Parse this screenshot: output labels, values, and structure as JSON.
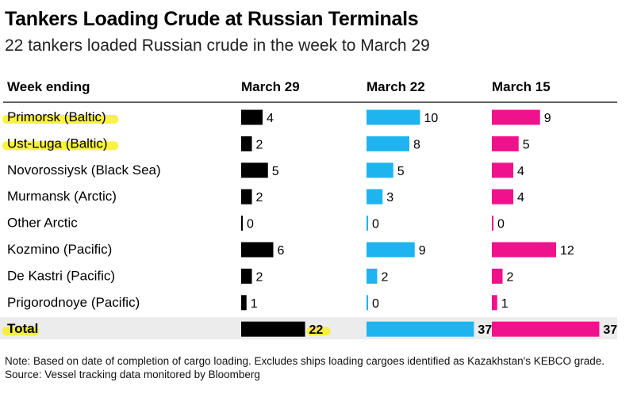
{
  "title": "Tankers Loading Crude at Russian Terminals",
  "subtitle": "22 tankers loaded Russian crude in the week to March 29",
  "note": "Note: Based on date of completion of cargo loading. Excludes ships loading cargoes identified as Kazakhstan's KEBCO grade.",
  "source": "Source: Vessel tracking data monitored by Bloomberg",
  "colors": {
    "march29": "#000000",
    "march22": "#1eb4f0",
    "march15": "#f0128c",
    "highlight": "#f7f01e",
    "total_band": "#ececec",
    "rule": "#000000"
  },
  "chart_data": {
    "type": "table",
    "row_header": "Week ending",
    "series": [
      {
        "name": "March 29",
        "values": [
          4,
          2,
          5,
          2,
          0,
          6,
          2,
          1
        ]
      },
      {
        "name": "March 22",
        "values": [
          10,
          8,
          5,
          3,
          0,
          9,
          2,
          0
        ]
      },
      {
        "name": "March 15",
        "values": [
          9,
          5,
          4,
          4,
          0,
          12,
          2,
          1
        ]
      }
    ],
    "categories": [
      "Primorsk (Baltic)",
      "Ust-Luga (Baltic)",
      "Novorossiysk (Black Sea)",
      "Murmansk (Arctic)",
      "Other Arctic",
      "Kozmino (Pacific)",
      "De Kastri (Pacific)",
      "Prigorodnoye (Pacific)"
    ],
    "highlighted_categories": [
      "Primorsk (Baltic)",
      "Ust-Luga (Baltic)"
    ],
    "total_label": "Total",
    "totals": [
      22,
      37,
      37
    ]
  }
}
